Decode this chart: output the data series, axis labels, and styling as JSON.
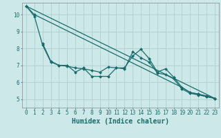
{
  "title": "",
  "xlabel": "Humidex (Indice chaleur)",
  "ylabel": "",
  "bg_color": "#cde8e8",
  "line_color": "#1a6b6b",
  "grid_color": "#aed0d0",
  "xlim": [
    -0.5,
    23.5
  ],
  "ylim": [
    4.5,
    10.7
  ],
  "yticks": [
    5,
    6,
    7,
    8,
    9,
    10
  ],
  "xticks": [
    0,
    1,
    2,
    3,
    4,
    5,
    6,
    7,
    8,
    9,
    10,
    11,
    12,
    13,
    14,
    15,
    16,
    17,
    18,
    19,
    20,
    21,
    22,
    23
  ],
  "series": [
    {
      "x": [
        0,
        1,
        19,
        20,
        21,
        22,
        23
      ],
      "y": [
        10.5,
        10.0,
        5.7,
        5.4,
        5.3,
        5.2,
        5.05
      ],
      "marker": "D",
      "markersize": 2.0,
      "linewidth": 0.9
    },
    {
      "x": [
        2,
        3,
        4,
        5,
        6,
        7,
        8,
        9,
        10,
        11,
        12,
        13,
        14,
        15,
        16,
        17,
        18,
        19,
        20,
        21,
        22,
        23
      ],
      "y": [
        8.3,
        7.25,
        7.0,
        7.0,
        6.6,
        6.85,
        6.35,
        6.35,
        6.35,
        6.85,
        6.85,
        7.55,
        7.95,
        7.4,
        6.6,
        6.8,
        6.3,
        5.7,
        5.4,
        5.3,
        5.15,
        5.05
      ],
      "marker": "D",
      "markersize": 2.0,
      "linewidth": 0.9
    },
    {
      "x": [
        0,
        1,
        2,
        3,
        4,
        5,
        6,
        7,
        8,
        9,
        10,
        11,
        12,
        13,
        14,
        15,
        16,
        17,
        18,
        19,
        20,
        21,
        22,
        23
      ],
      "y": [
        10.5,
        9.9,
        8.2,
        7.2,
        7.0,
        6.95,
        6.85,
        6.8,
        6.7,
        6.6,
        6.9,
        6.85,
        6.8,
        7.8,
        7.45,
        7.2,
        6.55,
        6.45,
        6.2,
        5.6,
        5.35,
        5.25,
        5.15,
        5.05
      ],
      "marker": "D",
      "markersize": 2.0,
      "linewidth": 0.9
    },
    {
      "x": [
        0,
        23
      ],
      "y": [
        10.5,
        5.05
      ],
      "marker": null,
      "markersize": 0,
      "linewidth": 0.9
    }
  ],
  "tick_fontsize": 5.5,
  "label_fontsize": 7.0
}
